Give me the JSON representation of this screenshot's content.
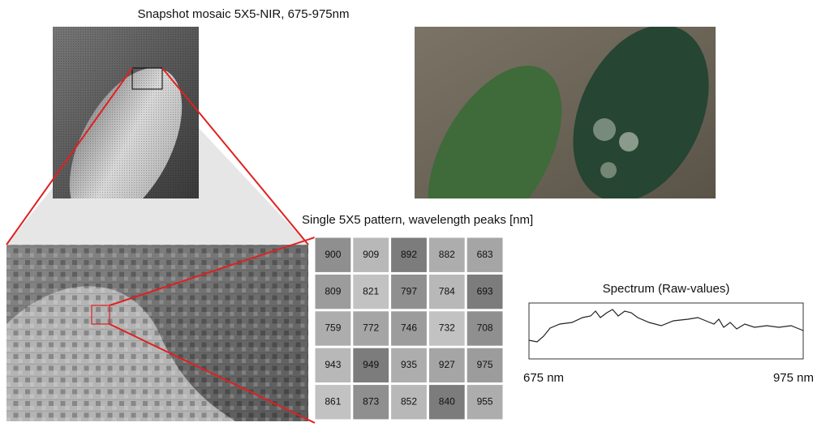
{
  "title": "Snapshot mosaic 5X5-NIR, 675-975nm",
  "pattern": {
    "title": "Single 5X5 pattern, wavelength peaks [nm]",
    "rows": [
      [
        900,
        909,
        892,
        882,
        683
      ],
      [
        809,
        821,
        797,
        784,
        693
      ],
      [
        759,
        772,
        746,
        732,
        708
      ],
      [
        943,
        949,
        935,
        927,
        975
      ],
      [
        861,
        873,
        852,
        840,
        955
      ]
    ]
  },
  "spectrum": {
    "title": "Spectrum (Raw-values)",
    "x_start": "675 nm",
    "x_end": "975 nm"
  }
}
